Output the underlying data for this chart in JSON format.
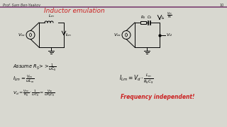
{
  "title": "Inductor emulation",
  "title_color": "#cc2222",
  "header_text": "Prof. Sam Ben-Yaakov",
  "page_number": "10",
  "slide_bg": "#d8d8d0",
  "header_line_color": "#7a4070",
  "freq_independent_color": "#cc2222",
  "freq_text": "Frequency independent!"
}
